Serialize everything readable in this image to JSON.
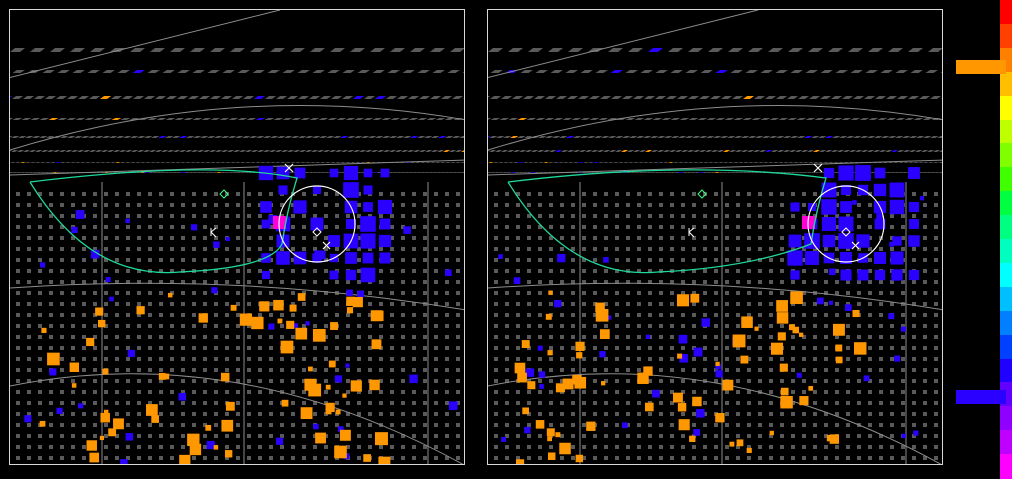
{
  "colors": {
    "background": "#000000",
    "frame": "#d8d8d8",
    "inactive_pmt": "#5a5a5a",
    "grid_line": "#8c8c8c",
    "early_hit": "#2a00ff",
    "late_hit": "#ff9800",
    "highlight_hit": "#ff00d8",
    "ring": "#ffffff",
    "track": "#1ed99a",
    "outline": "#40ff80"
  },
  "colorbar": {
    "palette": [
      "#ff0000",
      "#ff4000",
      "#ff8000",
      "#ffbf00",
      "#ffff00",
      "#bfff00",
      "#80ff00",
      "#40ff00",
      "#00ff40",
      "#00ff80",
      "#00ffbf",
      "#00ffff",
      "#00bfff",
      "#0080ff",
      "#0040ff",
      "#2000ff",
      "#6000ff",
      "#9000ff",
      "#c000ff",
      "#ff00ff"
    ],
    "marks": [
      {
        "name": "late-hit-count",
        "level": 0.14,
        "extent": 44,
        "color": "#ff9800"
      },
      {
        "name": "early-hit-count",
        "level": 0.83,
        "extent": 44,
        "color": "#2a00ff"
      }
    ]
  },
  "panels": [
    {
      "name": "left",
      "ring": {
        "cx": 307,
        "cy": 214,
        "r": 38
      }
    },
    {
      "name": "right",
      "ring": {
        "cx": 358,
        "cy": 214,
        "r": 38
      }
    }
  ]
}
